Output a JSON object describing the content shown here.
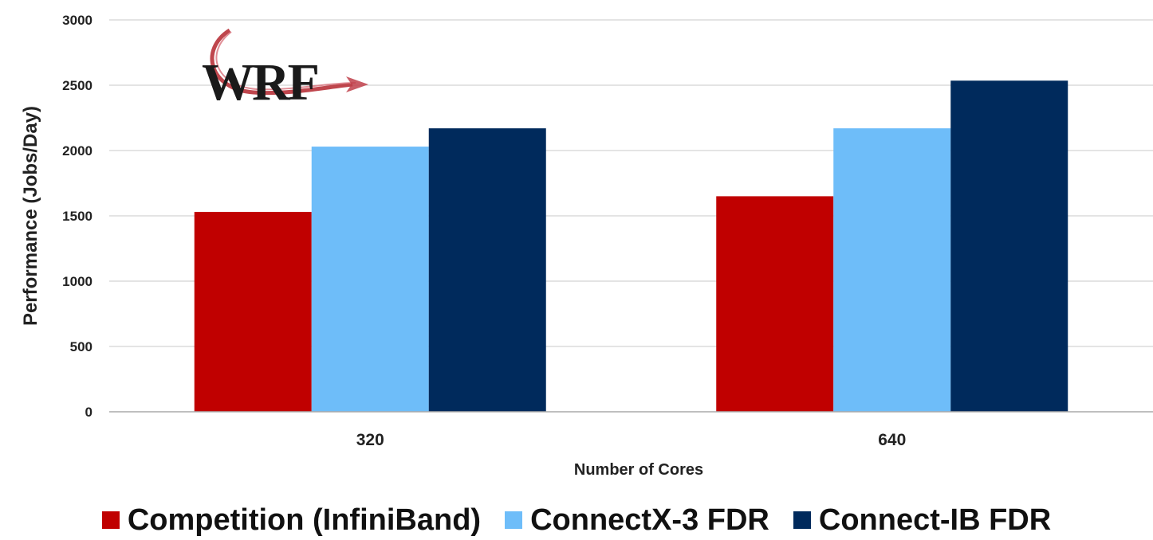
{
  "chart_data": {
    "type": "bar",
    "logo_text": "WRF",
    "xlabel": "Number of Cores",
    "ylabel": "Performance  (Jobs/Day)",
    "categories": [
      "320",
      "640"
    ],
    "yticks": [
      "0",
      "500",
      "1000",
      "1500",
      "2000",
      "2500",
      "3000"
    ],
    "ylim": [
      0,
      3000
    ],
    "grid": true,
    "legend_position": "bottom",
    "series": [
      {
        "name": "Competition (InfiniBand)",
        "color": "#c00000",
        "values": [
          1530,
          1650
        ]
      },
      {
        "name": "ConnectX-3 FDR",
        "color": "#6ebdf9",
        "values": [
          2030,
          2170
        ]
      },
      {
        "name": "Connect-IB FDR",
        "color": "#002a5c",
        "values": [
          2170,
          2535
        ]
      }
    ]
  }
}
